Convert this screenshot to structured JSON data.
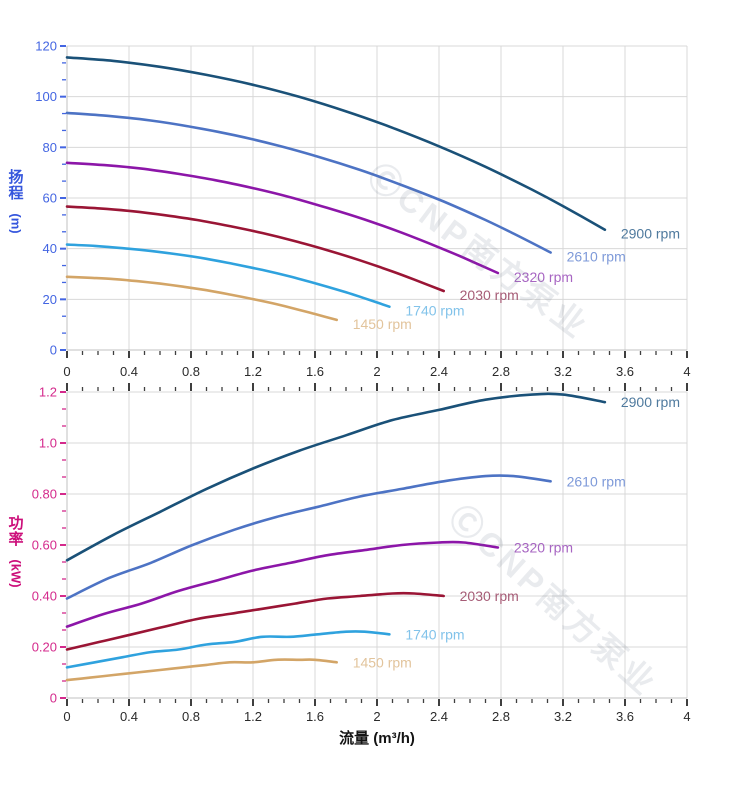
{
  "watermark": {
    "text": "ⒸCNP南方泵业"
  },
  "axes": {
    "head_title": "扬程",
    "head_unit": "(m)",
    "power_title": "功率",
    "power_unit": "(kW)",
    "flow_title": "流量 (m³/h)"
  },
  "palette": {
    "grid": "#d8d8d8",
    "axis_line": "#c2c2c2",
    "x_tick": "#3f3f3f",
    "x_label": "#2b2b2b",
    "head_axis": "#4365e2",
    "power_axis": "#d42a8c"
  },
  "chart_data": [
    {
      "type": "line",
      "title": "",
      "xlabel": "流量 (m³/h)",
      "ylabel": "扬程 (m)",
      "xlim": [
        0,
        4
      ],
      "ylim": [
        0,
        120
      ],
      "grid": true,
      "legend_position": "at-curve-end",
      "x_tick_values": [
        0,
        0.4,
        0.8,
        1.2,
        1.6,
        2,
        2.4,
        2.8,
        3.2,
        3.6,
        4
      ],
      "x_tick_labels": [
        "0",
        "0.4",
        "0.8",
        "1.2",
        "1.6",
        "2",
        "2.4",
        "2.8",
        "3.2",
        "3.6",
        "4"
      ],
      "y_tick_values": [
        0,
        20,
        40,
        60,
        80,
        100,
        120
      ],
      "y_tick_labels": [
        "0",
        "20",
        "40",
        "60",
        "80",
        "100",
        "120"
      ],
      "series": [
        {
          "name": "2900 rpm",
          "color": "#1a5178",
          "label_color": "#4f7a9e",
          "x": [
            0,
            0.3,
            0.6,
            0.9,
            1.2,
            1.5,
            1.8,
            2.1,
            2.4,
            2.7,
            3.0,
            3.2,
            3.47
          ],
          "y": [
            115.5,
            114.1,
            111.8,
            108.6,
            104.7,
            99.9,
            94.2,
            87.7,
            80.4,
            72.3,
            63.3,
            56.8,
            47.5
          ]
        },
        {
          "name": "2610 rpm",
          "color": "#4d73c4",
          "label_color": "#7e9ad9",
          "x": [
            0,
            0.27,
            0.54,
            0.81,
            1.08,
            1.35,
            1.62,
            1.89,
            2.16,
            2.43,
            2.7,
            2.88,
            3.12
          ],
          "y": [
            93.6,
            92.4,
            90.6,
            88.0,
            84.8,
            80.9,
            76.3,
            71.1,
            65.1,
            58.6,
            51.3,
            46.0,
            38.5
          ]
        },
        {
          "name": "2320 rpm",
          "color": "#8c16a8",
          "label_color": "#a765c2",
          "x": [
            0,
            0.24,
            0.48,
            0.72,
            0.96,
            1.2,
            1.44,
            1.68,
            1.92,
            2.16,
            2.4,
            2.56,
            2.78
          ],
          "y": [
            73.9,
            73.0,
            71.6,
            69.5,
            67.0,
            63.9,
            60.3,
            56.1,
            51.5,
            46.3,
            40.5,
            36.4,
            30.4
          ]
        },
        {
          "name": "2030 rpm",
          "color": "#9a1535",
          "label_color": "#a65c76",
          "x": [
            0,
            0.21,
            0.42,
            0.63,
            0.84,
            1.05,
            1.26,
            1.47,
            1.68,
            1.89,
            2.1,
            2.24,
            2.43
          ],
          "y": [
            56.6,
            55.9,
            54.8,
            53.2,
            51.3,
            48.9,
            46.2,
            43.0,
            39.4,
            35.4,
            31.0,
            27.8,
            23.3
          ]
        },
        {
          "name": "1740 rpm",
          "color": "#2fa2de",
          "label_color": "#82c3ea",
          "x": [
            0,
            0.18,
            0.36,
            0.54,
            0.72,
            0.9,
            1.08,
            1.26,
            1.44,
            1.62,
            1.8,
            1.92,
            2.08
          ],
          "y": [
            41.6,
            41.1,
            40.2,
            39.1,
            37.7,
            36.0,
            33.9,
            31.6,
            29.0,
            26.0,
            22.8,
            20.4,
            17.1
          ]
        },
        {
          "name": "1450 rpm",
          "color": "#d3a567",
          "label_color": "#e2c49c",
          "x": [
            0,
            0.15,
            0.3,
            0.45,
            0.6,
            0.75,
            0.9,
            1.05,
            1.2,
            1.35,
            1.5,
            1.6,
            1.74
          ],
          "y": [
            28.9,
            28.5,
            28.0,
            27.2,
            26.2,
            25.0,
            23.6,
            21.9,
            20.1,
            18.1,
            15.8,
            14.2,
            11.9
          ]
        }
      ]
    },
    {
      "type": "line",
      "title": "",
      "xlabel": "流量 (m³/h)",
      "ylabel": "功率 (kW)",
      "xlim": [
        0,
        4
      ],
      "ylim": [
        0,
        1.2
      ],
      "grid": true,
      "legend_position": "at-curve-end",
      "x_tick_values": [
        0,
        0.4,
        0.8,
        1.2,
        1.6,
        2,
        2.4,
        2.8,
        3.2,
        3.6,
        4
      ],
      "x_tick_labels": [
        "0",
        "0.4",
        "0.8",
        "1.2",
        "1.6",
        "2",
        "2.4",
        "2.8",
        "3.2",
        "3.6",
        "4"
      ],
      "y_tick_values": [
        0,
        0.2,
        0.4,
        0.6,
        0.8,
        1.0,
        1.2
      ],
      "y_tick_labels": [
        "0",
        "0.20",
        "0.40",
        "0.60",
        "0.80",
        "1.0",
        "1.2"
      ],
      "series": [
        {
          "name": "2900 rpm",
          "color": "#1a5178",
          "label_color": "#4f7a9e",
          "x": [
            0,
            0.3,
            0.6,
            0.9,
            1.2,
            1.5,
            1.8,
            2.1,
            2.4,
            2.7,
            3.0,
            3.2,
            3.47
          ],
          "y": [
            0.54,
            0.64,
            0.73,
            0.82,
            0.9,
            0.97,
            1.03,
            1.09,
            1.13,
            1.17,
            1.19,
            1.19,
            1.16
          ]
        },
        {
          "name": "2610 rpm",
          "color": "#4d73c4",
          "label_color": "#7e9ad9",
          "x": [
            0,
            0.27,
            0.54,
            0.81,
            1.08,
            1.35,
            1.62,
            1.89,
            2.16,
            2.43,
            2.7,
            2.88,
            3.12
          ],
          "y": [
            0.39,
            0.47,
            0.53,
            0.6,
            0.66,
            0.71,
            0.75,
            0.79,
            0.82,
            0.85,
            0.87,
            0.87,
            0.85
          ]
        },
        {
          "name": "2320 rpm",
          "color": "#8c16a8",
          "label_color": "#a765c2",
          "x": [
            0,
            0.24,
            0.48,
            0.72,
            0.96,
            1.2,
            1.44,
            1.68,
            1.92,
            2.16,
            2.4,
            2.56,
            2.78
          ],
          "y": [
            0.28,
            0.33,
            0.37,
            0.42,
            0.46,
            0.5,
            0.53,
            0.56,
            0.58,
            0.6,
            0.61,
            0.61,
            0.59
          ]
        },
        {
          "name": "2030 rpm",
          "color": "#9a1535",
          "label_color": "#a65c76",
          "x": [
            0,
            0.21,
            0.42,
            0.63,
            0.84,
            1.05,
            1.26,
            1.47,
            1.68,
            1.89,
            2.1,
            2.24,
            2.43
          ],
          "y": [
            0.19,
            0.22,
            0.25,
            0.28,
            0.31,
            0.33,
            0.35,
            0.37,
            0.39,
            0.4,
            0.41,
            0.41,
            0.4
          ]
        },
        {
          "name": "1740 rpm",
          "color": "#2fa2de",
          "label_color": "#82c3ea",
          "x": [
            0,
            0.18,
            0.36,
            0.54,
            0.72,
            0.9,
            1.08,
            1.26,
            1.44,
            1.62,
            1.8,
            1.92,
            2.08
          ],
          "y": [
            0.12,
            0.14,
            0.16,
            0.18,
            0.19,
            0.21,
            0.22,
            0.24,
            0.24,
            0.25,
            0.26,
            0.26,
            0.25
          ]
        },
        {
          "name": "1450 rpm",
          "color": "#d3a567",
          "label_color": "#e2c49c",
          "x": [
            0,
            0.15,
            0.3,
            0.45,
            0.6,
            0.75,
            0.9,
            1.05,
            1.2,
            1.35,
            1.5,
            1.6,
            1.74
          ],
          "y": [
            0.07,
            0.08,
            0.09,
            0.1,
            0.11,
            0.12,
            0.13,
            0.14,
            0.14,
            0.15,
            0.15,
            0.15,
            0.14
          ]
        }
      ]
    }
  ]
}
